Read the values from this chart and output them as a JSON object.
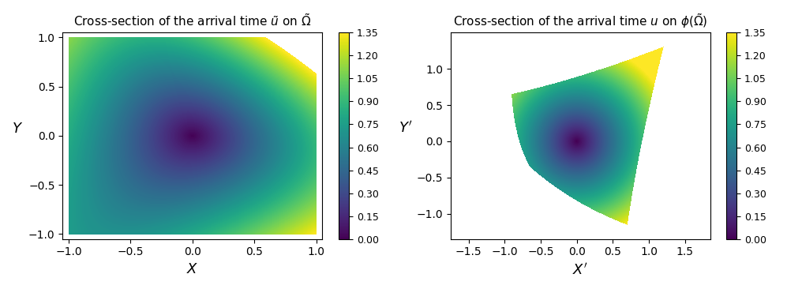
{
  "title_left": "Cross-section of the arrival time $\\tilde{u}$ on $\\tilde{\\Omega}$",
  "title_right": "Cross-section of the arrival time $u$ on $\\phi(\\tilde{\\Omega})$",
  "xlabel_left": "$X$",
  "ylabel_left": "$Y$",
  "xlabel_right": "$X'$",
  "ylabel_right": "$Y'$",
  "xlim_left": [
    -1.05,
    1.05
  ],
  "ylim_left": [
    -1.05,
    1.05
  ],
  "xlim_right": [
    -1.75,
    1.85
  ],
  "ylim_right": [
    -1.35,
    1.5
  ],
  "cmap": "viridis",
  "vmin": 0.0,
  "vmax": 1.35,
  "colorbar_ticks": [
    0.0,
    0.15,
    0.3,
    0.45,
    0.6,
    0.75,
    0.9,
    1.05,
    1.2,
    1.35
  ],
  "r_min": 0.7,
  "r_max": 1.75,
  "theta_min_deg": -62.0,
  "theta_max_deg": 148.0,
  "source_r": 0.0,
  "figsize": [
    9.97,
    3.66
  ],
  "dpi": 100,
  "grid_N": 400,
  "xticks_left": [
    -1.0,
    -0.5,
    0.0,
    0.5,
    1.0
  ],
  "yticks_left": [
    -1.0,
    -0.5,
    0.0,
    0.5,
    1.0
  ],
  "xticks_right": [
    -1.5,
    -1.0,
    -0.5,
    0.0,
    0.5,
    1.0,
    1.5
  ],
  "yticks_right": [
    -1.0,
    -0.5,
    0.0,
    0.5,
    1.0
  ]
}
